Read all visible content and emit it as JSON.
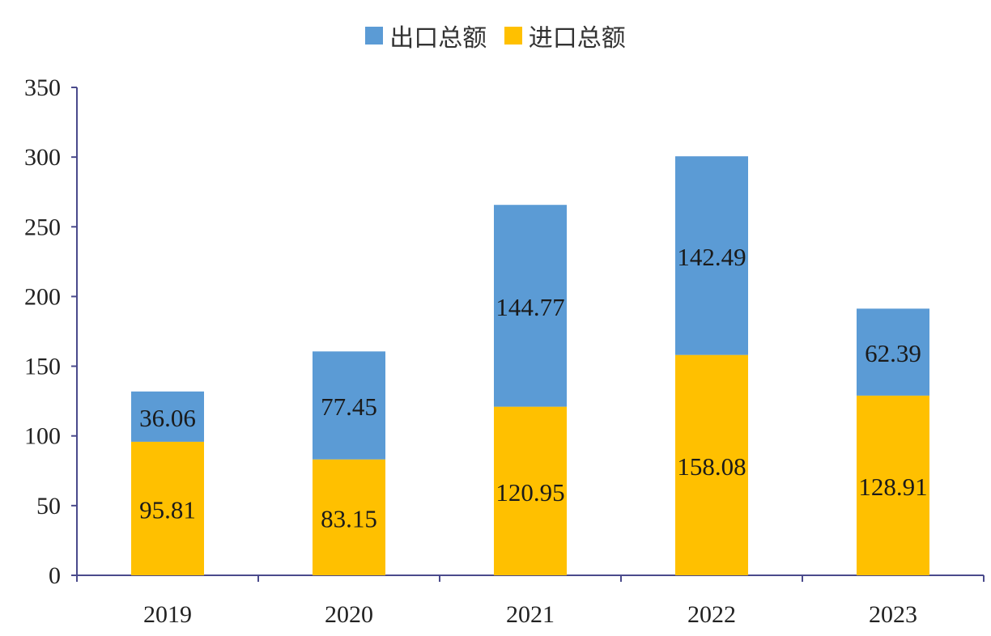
{
  "chart_data": {
    "type": "bar",
    "stacked": true,
    "categories": [
      "2019",
      "2020",
      "2021",
      "2022",
      "2023"
    ],
    "series": [
      {
        "name": "进口总额",
        "values": [
          95.81,
          83.15,
          120.95,
          158.08,
          128.91
        ],
        "color": "#FFC000"
      },
      {
        "name": "出口总额",
        "values": [
          36.06,
          77.45,
          144.77,
          142.49,
          62.39
        ],
        "color": "#5B9BD5"
      }
    ],
    "legend_order": [
      "出口总额",
      "进口总额"
    ],
    "legend_position": "top-center",
    "ylim": [
      0,
      350
    ],
    "y_ticks": [
      0,
      50,
      100,
      150,
      200,
      250,
      300,
      350
    ],
    "grid": false,
    "axis_color": "#4A4A8C"
  }
}
